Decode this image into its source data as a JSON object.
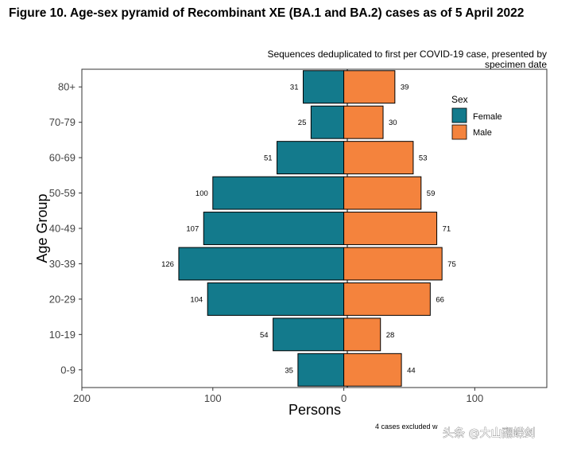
{
  "chart_data": {
    "type": "bar",
    "orientation": "horizontal",
    "layout": "population-pyramid",
    "title": "Figure 10. Age-sex pyramid of Recombinant XE (BA.1 and BA.2) cases as of 5 April 2022",
    "subtitle_lines": [
      "Sequences deduplicated to first per COVID-19 case, presented by",
      "specimen date"
    ],
    "categories": [
      "0-9",
      "10-19",
      "20-29",
      "30-39",
      "40-49",
      "50-59",
      "60-69",
      "70-79",
      "80+"
    ],
    "series": [
      {
        "name": "Female",
        "color": "#137a8c",
        "direction": "left",
        "values": [
          35,
          54,
          104,
          126,
          107,
          100,
          51,
          25,
          31
        ]
      },
      {
        "name": "Male",
        "color": "#f4833d",
        "direction": "right",
        "values": [
          44,
          28,
          66,
          75,
          71,
          59,
          53,
          30,
          39
        ]
      }
    ],
    "xlabel": "Persons",
    "ylabel": "Age Group",
    "xlim": [
      -200,
      155
    ],
    "xticks": [
      -200,
      -100,
      0,
      100
    ],
    "xtick_labels": [
      "200",
      "100",
      "0",
      "100"
    ],
    "legend": {
      "title": "Sex",
      "position": "top-right",
      "entries": [
        "Female",
        "Male"
      ]
    },
    "caption": "4 cases excluded w",
    "watermark": "头条 @大山翻蝶剑"
  }
}
